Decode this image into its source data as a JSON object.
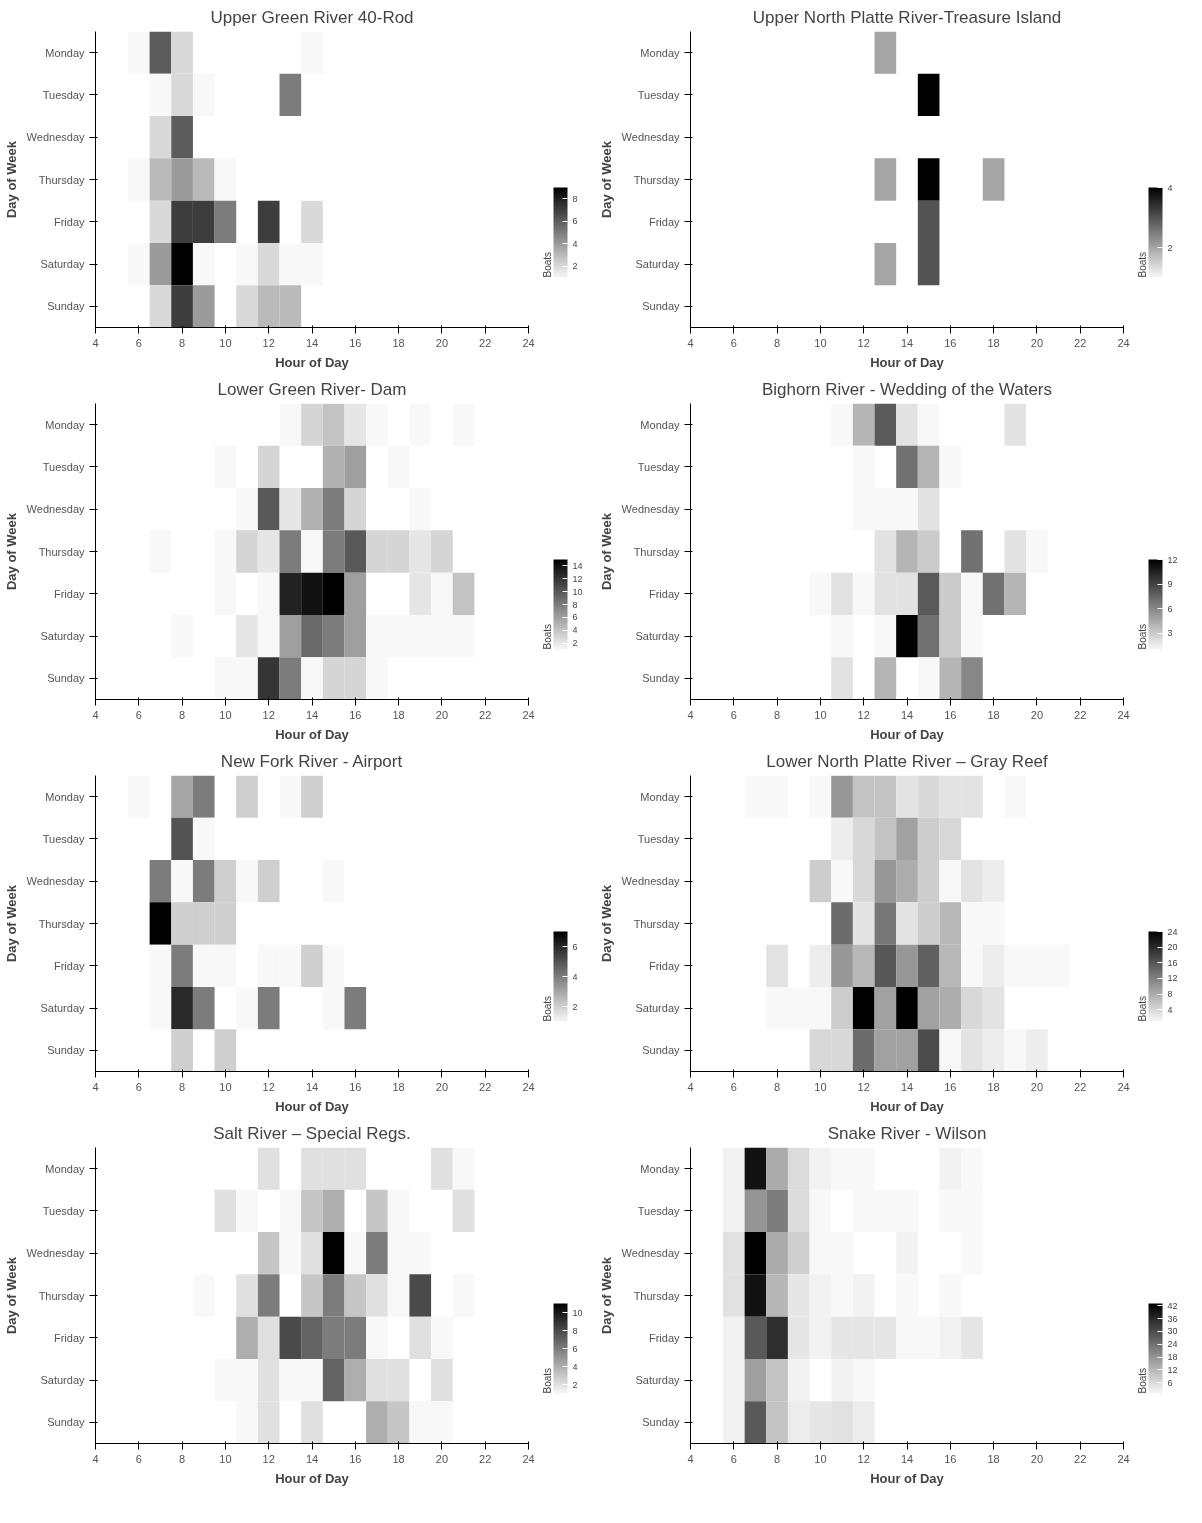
{
  "chart_data": [
    {
      "type": "heatmap",
      "title": "Upper Green River 40-Rod",
      "xlabel": "Hour of Day",
      "ylabel": "Day of Week",
      "clabel": "Boats",
      "x": [
        5,
        6,
        7,
        8,
        9,
        10,
        11,
        12,
        13,
        14,
        15,
        16,
        17,
        18,
        19,
        20,
        21,
        22
      ],
      "xlim": [
        4,
        24
      ],
      "xticks": [
        4,
        6,
        8,
        10,
        12,
        14,
        16,
        18,
        20,
        22,
        24
      ],
      "y_categories": [
        "Monday",
        "Tuesday",
        "Wednesday",
        "Thursday",
        "Friday",
        "Saturday",
        "Sunday"
      ],
      "clim": [
        1,
        9
      ],
      "cticks": [
        2,
        4,
        6,
        8
      ],
      "cells": [
        [
          null,
          1,
          6,
          2,
          null,
          null,
          null,
          null,
          null,
          1,
          null,
          null,
          null,
          null,
          null,
          null,
          null,
          null
        ],
        [
          null,
          null,
          1,
          2,
          1,
          null,
          null,
          null,
          5,
          null,
          null,
          null,
          null,
          null,
          null,
          null,
          null,
          null
        ],
        [
          null,
          null,
          2,
          6,
          null,
          null,
          null,
          null,
          null,
          null,
          null,
          null,
          null,
          null,
          null,
          null,
          null,
          null
        ],
        [
          null,
          1,
          3,
          4,
          3,
          1,
          null,
          null,
          null,
          null,
          null,
          null,
          null,
          null,
          null,
          null,
          null,
          null
        ],
        [
          null,
          null,
          2,
          7,
          7,
          5,
          null,
          7,
          null,
          2,
          null,
          null,
          null,
          null,
          null,
          null,
          null,
          null
        ],
        [
          null,
          1,
          4,
          9,
          1,
          null,
          1,
          2,
          1,
          1,
          null,
          null,
          null,
          null,
          null,
          null,
          null,
          null
        ],
        [
          null,
          null,
          2,
          7,
          4,
          null,
          2,
          3,
          3,
          null,
          null,
          null,
          null,
          null,
          null,
          null,
          null,
          null
        ]
      ]
    },
    {
      "type": "heatmap",
      "title": "Upper North Platte River-Treasure Island",
      "xlabel": "Hour of Day",
      "ylabel": "Day of Week",
      "clabel": "Boats",
      "x": [
        5,
        6,
        7,
        8,
        9,
        10,
        11,
        12,
        13,
        14,
        15,
        16,
        17,
        18,
        19,
        20,
        21,
        22
      ],
      "xlim": [
        4,
        24
      ],
      "xticks": [
        4,
        6,
        8,
        10,
        12,
        14,
        16,
        18,
        20,
        22,
        24
      ],
      "y_categories": [
        "Monday",
        "Tuesday",
        "Wednesday",
        "Thursday",
        "Friday",
        "Saturday",
        "Sunday"
      ],
      "clim": [
        1,
        4
      ],
      "cticks": [
        2,
        4
      ],
      "cells": [
        [
          null,
          null,
          null,
          null,
          null,
          null,
          null,
          null,
          2,
          null,
          null,
          null,
          null,
          null,
          null,
          null,
          null,
          null
        ],
        [
          null,
          null,
          null,
          null,
          null,
          null,
          null,
          null,
          null,
          null,
          4,
          null,
          null,
          null,
          null,
          null,
          null,
          null
        ],
        [
          null,
          null,
          null,
          null,
          null,
          null,
          null,
          null,
          null,
          null,
          null,
          null,
          null,
          null,
          null,
          null,
          null,
          null
        ],
        [
          null,
          null,
          null,
          null,
          null,
          null,
          null,
          null,
          2,
          null,
          4,
          null,
          null,
          2,
          null,
          null,
          null,
          null
        ],
        [
          null,
          null,
          null,
          null,
          null,
          null,
          null,
          null,
          null,
          null,
          3,
          null,
          null,
          null,
          null,
          null,
          null,
          null
        ],
        [
          null,
          null,
          null,
          null,
          null,
          null,
          null,
          null,
          2,
          null,
          3,
          null,
          null,
          null,
          null,
          null,
          null,
          null
        ],
        [
          null,
          null,
          null,
          null,
          null,
          null,
          null,
          null,
          null,
          null,
          null,
          null,
          null,
          null,
          null,
          null,
          null,
          null
        ]
      ]
    },
    {
      "type": "heatmap",
      "title": "Lower Green River- Dam",
      "xlabel": "Hour of Day",
      "ylabel": "Day of Week",
      "clabel": "Boats",
      "x": [
        5,
        6,
        7,
        8,
        9,
        10,
        11,
        12,
        13,
        14,
        15,
        16,
        17,
        18,
        19,
        20,
        21,
        22
      ],
      "xlim": [
        4,
        24
      ],
      "xticks": [
        4,
        6,
        8,
        10,
        12,
        14,
        16,
        18,
        20,
        22,
        24
      ],
      "y_categories": [
        "Monday",
        "Tuesday",
        "Wednesday",
        "Thursday",
        "Friday",
        "Saturday",
        "Sunday"
      ],
      "clim": [
        1,
        15
      ],
      "cticks": [
        2,
        4,
        6,
        8,
        10,
        12,
        14
      ],
      "cells": [
        [
          null,
          null,
          null,
          null,
          null,
          null,
          null,
          null,
          1,
          3,
          4,
          2,
          1,
          null,
          1,
          null,
          1,
          null
        ],
        [
          null,
          null,
          null,
          null,
          null,
          1,
          null,
          3,
          null,
          null,
          5,
          6,
          null,
          1,
          null,
          null,
          null,
          null
        ],
        [
          null,
          null,
          null,
          null,
          null,
          null,
          1,
          10,
          2,
          5,
          8,
          3,
          null,
          null,
          1,
          null,
          null,
          null
        ],
        [
          null,
          null,
          1,
          null,
          null,
          1,
          3,
          2,
          8,
          1,
          8,
          10,
          3,
          3,
          2,
          3,
          null,
          null
        ],
        [
          null,
          null,
          null,
          null,
          null,
          1,
          null,
          1,
          13,
          14,
          15,
          6,
          null,
          null,
          2,
          1,
          4,
          null
        ],
        [
          null,
          null,
          null,
          1,
          null,
          null,
          2,
          1,
          6,
          9,
          8,
          6,
          1,
          1,
          1,
          1,
          1,
          null
        ],
        [
          null,
          null,
          null,
          null,
          null,
          1,
          1,
          12,
          8,
          1,
          3,
          3,
          1,
          null,
          null,
          null,
          null,
          null
        ]
      ]
    },
    {
      "type": "heatmap",
      "title": "Bighorn River - Wedding of the Waters",
      "xlabel": "Hour of Day",
      "ylabel": "Day of Week",
      "clabel": "Boats",
      "x": [
        5,
        6,
        7,
        8,
        9,
        10,
        11,
        12,
        13,
        14,
        15,
        16,
        17,
        18,
        19,
        20,
        21,
        22
      ],
      "xlim": [
        4,
        24
      ],
      "xticks": [
        4,
        6,
        8,
        10,
        12,
        14,
        16,
        18,
        20,
        22,
        24
      ],
      "y_categories": [
        "Monday",
        "Tuesday",
        "Wednesday",
        "Thursday",
        "Friday",
        "Saturday",
        "Sunday"
      ],
      "clim": [
        1,
        12
      ],
      "cticks": [
        3,
        6,
        9,
        12
      ],
      "cells": [
        [
          null,
          null,
          null,
          null,
          null,
          null,
          1,
          4,
          8,
          2,
          1,
          null,
          null,
          null,
          2,
          null,
          null,
          null
        ],
        [
          null,
          null,
          null,
          null,
          null,
          null,
          null,
          1,
          null,
          7,
          4,
          1,
          null,
          null,
          null,
          null,
          null,
          null
        ],
        [
          null,
          null,
          null,
          null,
          null,
          null,
          null,
          1,
          1,
          1,
          2,
          null,
          null,
          null,
          null,
          null,
          null,
          null
        ],
        [
          null,
          null,
          null,
          null,
          null,
          null,
          null,
          null,
          2,
          4,
          3,
          null,
          7,
          null,
          2,
          1,
          null,
          null
        ],
        [
          null,
          null,
          null,
          null,
          null,
          1,
          2,
          1,
          2,
          2,
          8,
          3,
          1,
          7,
          4,
          null,
          null,
          null
        ],
        [
          null,
          null,
          null,
          null,
          null,
          null,
          1,
          null,
          1,
          12,
          7,
          3,
          1,
          null,
          null,
          null,
          null,
          null
        ],
        [
          null,
          null,
          null,
          null,
          null,
          null,
          2,
          null,
          4,
          null,
          1,
          4,
          6,
          null,
          null,
          null,
          null,
          null
        ]
      ]
    },
    {
      "type": "heatmap",
      "title": "New Fork River - Airport",
      "xlabel": "Hour of Day",
      "ylabel": "Day of Week",
      "clabel": "Boats",
      "x": [
        5,
        6,
        7,
        8,
        9,
        10,
        11,
        12,
        13,
        14,
        15,
        16,
        17,
        18,
        19,
        20,
        21,
        22
      ],
      "xlim": [
        4,
        24
      ],
      "xticks": [
        4,
        6,
        8,
        10,
        12,
        14,
        16,
        18,
        20,
        22,
        24
      ],
      "y_categories": [
        "Monday",
        "Tuesday",
        "Wednesday",
        "Thursday",
        "Friday",
        "Saturday",
        "Sunday"
      ],
      "clim": [
        1,
        7
      ],
      "cticks": [
        2,
        4,
        6
      ],
      "cells": [
        [
          null,
          1,
          null,
          3,
          4,
          null,
          2,
          null,
          1,
          2,
          null,
          null,
          null,
          null,
          null,
          null,
          null,
          null
        ],
        [
          null,
          null,
          null,
          5,
          1,
          null,
          null,
          null,
          null,
          null,
          null,
          null,
          null,
          null,
          null,
          null,
          null,
          null
        ],
        [
          null,
          null,
          4,
          1,
          4,
          2,
          1,
          2,
          null,
          null,
          1,
          null,
          null,
          null,
          null,
          null,
          null,
          null
        ],
        [
          null,
          null,
          7,
          2,
          2,
          2,
          null,
          null,
          null,
          null,
          null,
          null,
          null,
          null,
          null,
          null,
          null,
          null
        ],
        [
          null,
          null,
          1,
          4,
          1,
          1,
          null,
          1,
          1,
          2,
          1,
          null,
          null,
          null,
          null,
          null,
          null,
          null
        ],
        [
          null,
          null,
          1,
          6,
          4,
          null,
          1,
          4,
          null,
          null,
          1,
          4,
          null,
          null,
          null,
          null,
          null,
          null
        ],
        [
          null,
          null,
          null,
          2,
          null,
          2,
          null,
          null,
          null,
          null,
          null,
          null,
          null,
          null,
          null,
          null,
          null,
          null
        ]
      ]
    },
    {
      "type": "heatmap",
      "title": "Lower North Platte River – Gray Reef",
      "xlabel": "Hour of Day",
      "ylabel": "Day of Week",
      "clabel": "Boats",
      "x": [
        5,
        6,
        7,
        8,
        9,
        10,
        11,
        12,
        13,
        14,
        15,
        16,
        17,
        18,
        19,
        20,
        21,
        22
      ],
      "xlim": [
        4,
        24
      ],
      "xticks": [
        4,
        6,
        8,
        10,
        12,
        14,
        16,
        18,
        20,
        22,
        24
      ],
      "y_categories": [
        "Monday",
        "Tuesday",
        "Wednesday",
        "Thursday",
        "Friday",
        "Saturday",
        "Sunday"
      ],
      "clim": [
        1,
        24
      ],
      "cticks": [
        4,
        8,
        12,
        16,
        20,
        24
      ],
      "cells": [
        [
          null,
          null,
          1,
          1,
          null,
          1,
          10,
          6,
          6,
          3,
          4,
          3,
          3,
          null,
          1,
          null,
          null,
          null
        ],
        [
          null,
          null,
          null,
          null,
          null,
          null,
          2,
          4,
          6,
          9,
          5,
          4,
          null,
          null,
          null,
          null,
          null,
          null
        ],
        [
          null,
          null,
          null,
          null,
          null,
          5,
          1,
          4,
          10,
          8,
          5,
          1,
          3,
          2,
          null,
          null,
          null,
          null
        ],
        [
          null,
          null,
          null,
          null,
          null,
          null,
          14,
          3,
          13,
          3,
          5,
          7,
          1,
          1,
          null,
          null,
          null,
          null
        ],
        [
          null,
          null,
          null,
          3,
          null,
          2,
          10,
          7,
          16,
          10,
          15,
          7,
          1,
          2,
          1,
          1,
          1,
          null
        ],
        [
          null,
          null,
          null,
          1,
          1,
          1,
          5,
          24,
          9,
          24,
          9,
          8,
          4,
          3,
          null,
          null,
          null,
          null
        ],
        [
          null,
          null,
          null,
          null,
          null,
          4,
          4,
          14,
          9,
          9,
          17,
          1,
          3,
          2,
          1,
          2,
          null,
          null
        ]
      ]
    },
    {
      "type": "heatmap",
      "title": "Salt River – Special Regs.",
      "xlabel": "Hour of Day",
      "ylabel": "Day of Week",
      "clabel": "Boats",
      "x": [
        5,
        6,
        7,
        8,
        9,
        10,
        11,
        12,
        13,
        14,
        15,
        16,
        17,
        18,
        19,
        20,
        21,
        22
      ],
      "xlim": [
        4,
        24
      ],
      "xticks": [
        4,
        6,
        8,
        10,
        12,
        14,
        16,
        18,
        20,
        22,
        24
      ],
      "y_categories": [
        "Monday",
        "Tuesday",
        "Wednesday",
        "Thursday",
        "Friday",
        "Saturday",
        "Sunday"
      ],
      "clim": [
        1,
        11
      ],
      "cticks": [
        2,
        4,
        6,
        8,
        10
      ],
      "cells": [
        [
          null,
          null,
          null,
          null,
          null,
          null,
          null,
          2,
          null,
          2,
          2,
          2,
          null,
          null,
          null,
          2,
          1,
          null
        ],
        [
          null,
          null,
          null,
          null,
          null,
          2,
          1,
          null,
          1,
          3,
          4,
          null,
          3,
          1,
          null,
          null,
          2,
          null
        ],
        [
          null,
          null,
          null,
          null,
          null,
          null,
          null,
          3,
          1,
          2,
          11,
          1,
          6,
          1,
          1,
          null,
          null,
          null
        ],
        [
          null,
          null,
          null,
          null,
          1,
          null,
          2,
          6,
          null,
          3,
          6,
          3,
          2,
          1,
          8,
          null,
          1,
          null
        ],
        [
          null,
          null,
          null,
          null,
          null,
          null,
          4,
          2,
          8,
          7,
          6,
          6,
          1,
          null,
          2,
          1,
          null,
          null
        ],
        [
          null,
          null,
          null,
          null,
          null,
          1,
          1,
          2,
          1,
          1,
          7,
          4,
          2,
          2,
          null,
          2,
          null,
          null
        ],
        [
          null,
          null,
          null,
          null,
          null,
          null,
          1,
          2,
          null,
          2,
          null,
          null,
          4,
          3,
          1,
          1,
          null,
          null
        ]
      ]
    },
    {
      "type": "heatmap",
      "title": "Snake River - Wilson",
      "xlabel": "Hour of Day",
      "ylabel": "Day of Week",
      "clabel": "Boats",
      "x": [
        5,
        6,
        7,
        8,
        9,
        10,
        11,
        12,
        13,
        14,
        15,
        16,
        17,
        18,
        19,
        20,
        21,
        22
      ],
      "xlim": [
        4,
        24
      ],
      "xticks": [
        4,
        6,
        8,
        10,
        12,
        14,
        16,
        18,
        20,
        22,
        24
      ],
      "y_categories": [
        "Monday",
        "Tuesday",
        "Wednesday",
        "Thursday",
        "Friday",
        "Saturday",
        "Sunday"
      ],
      "clim": [
        1,
        43
      ],
      "cticks": [
        6,
        12,
        18,
        24,
        30,
        36,
        42
      ],
      "cells": [
        [
          null,
          2,
          40,
          14,
          6,
          2,
          1,
          1,
          null,
          null,
          null,
          2,
          1,
          null,
          null,
          null,
          null,
          null
        ],
        [
          null,
          2,
          18,
          22,
          6,
          1,
          null,
          1,
          1,
          1,
          null,
          1,
          1,
          null,
          null,
          null,
          null,
          null
        ],
        [
          null,
          5,
          43,
          14,
          8,
          1,
          1,
          null,
          null,
          2,
          null,
          null,
          1,
          null,
          null,
          null,
          null,
          null
        ],
        [
          null,
          5,
          40,
          12,
          4,
          2,
          1,
          2,
          null,
          1,
          null,
          1,
          null,
          null,
          null,
          null,
          null,
          null
        ],
        [
          null,
          2,
          28,
          35,
          4,
          2,
          4,
          4,
          4,
          1,
          1,
          2,
          4,
          null,
          null,
          null,
          null,
          null
        ],
        [
          null,
          2,
          16,
          10,
          2,
          null,
          2,
          1,
          null,
          null,
          null,
          null,
          null,
          null,
          null,
          null,
          null,
          null
        ],
        [
          null,
          2,
          28,
          10,
          3,
          4,
          5,
          3,
          null,
          null,
          null,
          null,
          null,
          null,
          null,
          null,
          null,
          null
        ]
      ]
    }
  ]
}
